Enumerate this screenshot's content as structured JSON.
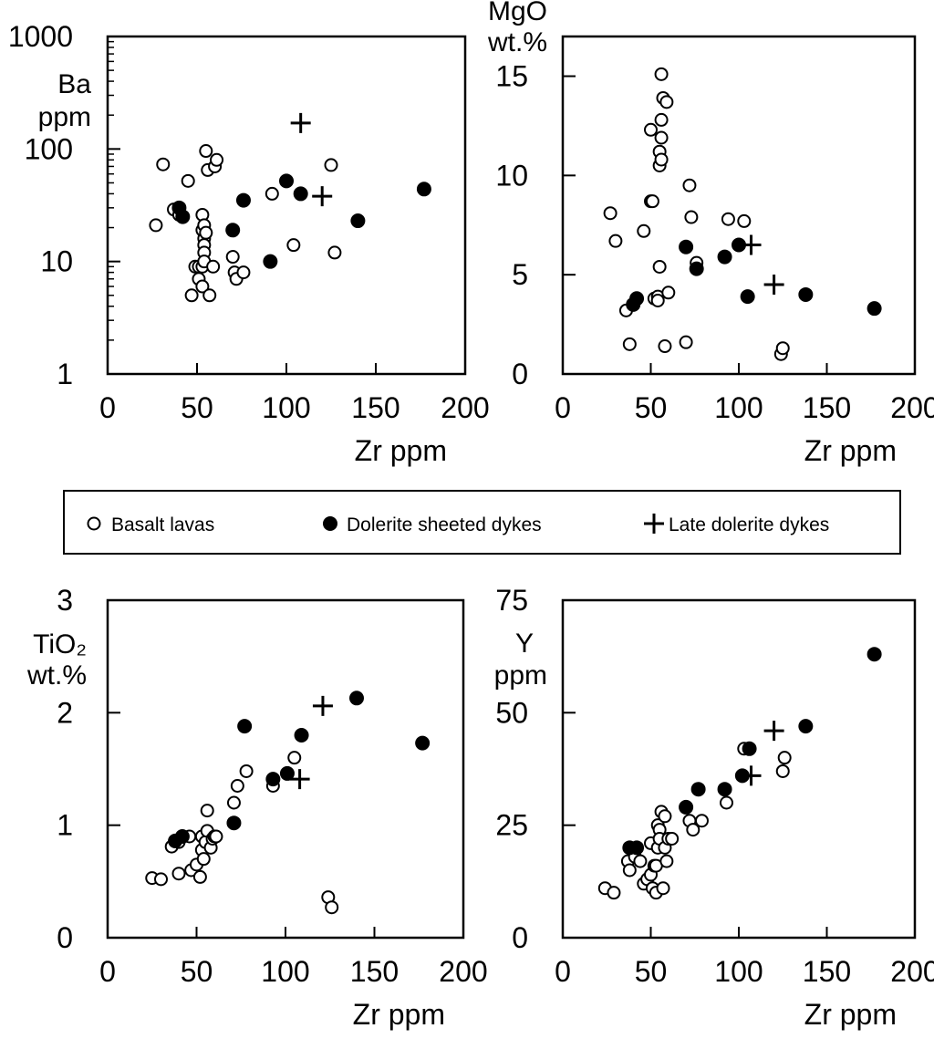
{
  "legend": {
    "items": [
      {
        "label": "Basalt lavas",
        "marker": "open-circle"
      },
      {
        "label": "Dolerite sheeted dykes",
        "marker": "filled-circle"
      },
      {
        "label": "Late dolerite dykes",
        "marker": "plus"
      }
    ]
  },
  "colors": {
    "ink": "#000000",
    "background": "#ffffff"
  },
  "chart_data": [
    {
      "id": "ba",
      "type": "scatter",
      "ylabel_lines": [
        "Ba",
        "ppm"
      ],
      "xlabel": "Zr ppm",
      "xlim": [
        0,
        200
      ],
      "xticks": [
        0,
        50,
        100,
        150,
        200
      ],
      "ylim": [
        1,
        1000
      ],
      "yscale": "log",
      "yticks": [
        1,
        10,
        100,
        1000
      ],
      "series": [
        {
          "name": "Basalt lavas",
          "marker": "open-circle",
          "points": [
            [
              27,
              21
            ],
            [
              31,
              73
            ],
            [
              37,
              29
            ],
            [
              40,
              26
            ],
            [
              45,
              52
            ],
            [
              47,
              5
            ],
            [
              49,
              9
            ],
            [
              51,
              9
            ],
            [
              51,
              7
            ],
            [
              53,
              6
            ],
            [
              53,
              9
            ],
            [
              53,
              19
            ],
            [
              53,
              26
            ],
            [
              54,
              21
            ],
            [
              54,
              16
            ],
            [
              54,
              14
            ],
            [
              54,
              12
            ],
            [
              54,
              10
            ],
            [
              55,
              18
            ],
            [
              55,
              96
            ],
            [
              56,
              65
            ],
            [
              57,
              5
            ],
            [
              59,
              9
            ],
            [
              60,
              70
            ],
            [
              61,
              80
            ],
            [
              70,
              11
            ],
            [
              71,
              8
            ],
            [
              72,
              7
            ],
            [
              76,
              8
            ],
            [
              92,
              40
            ],
            [
              104,
              14
            ],
            [
              125,
              72
            ],
            [
              127,
              12
            ]
          ]
        },
        {
          "name": "Dolerite sheeted dykes",
          "marker": "filled-circle",
          "points": [
            [
              40,
              30
            ],
            [
              42,
              25
            ],
            [
              70,
              19
            ],
            [
              76,
              35
            ],
            [
              91,
              10
            ],
            [
              100,
              52
            ],
            [
              108,
              40
            ],
            [
              140,
              23
            ],
            [
              177,
              44
            ]
          ]
        },
        {
          "name": "Late dolerite dykes",
          "marker": "plus",
          "points": [
            [
              108,
              170
            ],
            [
              120,
              38
            ]
          ]
        }
      ]
    },
    {
      "id": "mgo",
      "type": "scatter",
      "ylabel_lines": [
        "MgO",
        "wt.%"
      ],
      "xlabel": "Zr ppm",
      "xlim": [
        0,
        200
      ],
      "xticks": [
        0,
        50,
        100,
        150,
        200
      ],
      "ylim": [
        0,
        17
      ],
      "yticks": [
        0,
        5,
        10,
        15
      ],
      "series": [
        {
          "name": "Basalt lavas",
          "marker": "open-circle",
          "points": [
            [
              27,
              8.1
            ],
            [
              30,
              6.7
            ],
            [
              36,
              3.2
            ],
            [
              38,
              1.5
            ],
            [
              46,
              7.2
            ],
            [
              50,
              8.7
            ],
            [
              50,
              12.3
            ],
            [
              51,
              8.7
            ],
            [
              52,
              3.8
            ],
            [
              54,
              3.9
            ],
            [
              54,
              3.7
            ],
            [
              55,
              5.4
            ],
            [
              55,
              11.2
            ],
            [
              55,
              10.5
            ],
            [
              56,
              10.8
            ],
            [
              56,
              11.9
            ],
            [
              56,
              12.8
            ],
            [
              56,
              15.1
            ],
            [
              57,
              13.9
            ],
            [
              58,
              1.4
            ],
            [
              59,
              13.7
            ],
            [
              60,
              4.1
            ],
            [
              70,
              1.6
            ],
            [
              72,
              9.5
            ],
            [
              73,
              7.9
            ],
            [
              76,
              5.6
            ],
            [
              94,
              7.8
            ],
            [
              103,
              7.7
            ],
            [
              124,
              1.0
            ],
            [
              125,
              1.3
            ]
          ]
        },
        {
          "name": "Dolerite sheeted dykes",
          "marker": "filled-circle",
          "points": [
            [
              40,
              3.5
            ],
            [
              42,
              3.8
            ],
            [
              70,
              6.4
            ],
            [
              76,
              5.3
            ],
            [
              92,
              5.9
            ],
            [
              100,
              6.5
            ],
            [
              105,
              3.9
            ],
            [
              138,
              4.0
            ],
            [
              177,
              3.3
            ]
          ]
        },
        {
          "name": "Late dolerite dykes",
          "marker": "plus",
          "points": [
            [
              107,
              6.5
            ],
            [
              120,
              4.5
            ]
          ]
        }
      ]
    },
    {
      "id": "tio2",
      "type": "scatter",
      "ylabel_lines": [
        "TiO₂",
        "wt.%"
      ],
      "xlabel": "Zr ppm",
      "xlim": [
        0,
        200
      ],
      "xticks": [
        0,
        50,
        100,
        150,
        200
      ],
      "ylim": [
        0,
        3
      ],
      "yticks": [
        0,
        1,
        2,
        3
      ],
      "series": [
        {
          "name": "Basalt lavas",
          "marker": "open-circle",
          "points": [
            [
              25,
              0.53
            ],
            [
              30,
              0.52
            ],
            [
              36,
              0.81
            ],
            [
              40,
              0.57
            ],
            [
              40,
              0.85
            ],
            [
              46,
              0.9
            ],
            [
              47,
              0.6
            ],
            [
              50,
              0.65
            ],
            [
              52,
              0.54
            ],
            [
              53,
              0.78
            ],
            [
              53,
              0.9
            ],
            [
              54,
              0.7
            ],
            [
              55,
              0.85
            ],
            [
              56,
              0.95
            ],
            [
              56,
              1.13
            ],
            [
              58,
              0.8
            ],
            [
              59,
              0.88
            ],
            [
              60,
              0.9
            ],
            [
              61,
              0.9
            ],
            [
              71,
              1.2
            ],
            [
              73,
              1.35
            ],
            [
              78,
              1.48
            ],
            [
              93,
              1.35
            ],
            [
              105,
              1.6
            ],
            [
              124,
              0.36
            ],
            [
              126,
              0.27
            ]
          ]
        },
        {
          "name": "Dolerite sheeted dykes",
          "marker": "filled-circle",
          "points": [
            [
              38,
              0.86
            ],
            [
              42,
              0.9
            ],
            [
              71,
              1.02
            ],
            [
              77,
              1.88
            ],
            [
              93,
              1.41
            ],
            [
              101,
              1.46
            ],
            [
              109,
              1.8
            ],
            [
              140,
              2.13
            ],
            [
              177,
              1.73
            ]
          ]
        },
        {
          "name": "Late dolerite dykes",
          "marker": "plus",
          "points": [
            [
              108,
              1.41
            ],
            [
              121,
              2.06
            ]
          ]
        }
      ]
    },
    {
      "id": "y",
      "type": "scatter",
      "ylabel_lines": [
        "Y",
        "ppm"
      ],
      "xlabel": "Zr ppm",
      "xlim": [
        0,
        200
      ],
      "xticks": [
        0,
        50,
        100,
        150,
        200
      ],
      "ylim": [
        0,
        75
      ],
      "yticks": [
        0,
        25,
        50,
        75
      ],
      "series": [
        {
          "name": "Basalt lavas",
          "marker": "open-circle",
          "points": [
            [
              24,
              11
            ],
            [
              29,
              10
            ],
            [
              37,
              17
            ],
            [
              38,
              15
            ],
            [
              41,
              18
            ],
            [
              44,
              17
            ],
            [
              46,
              12
            ],
            [
              48,
              13
            ],
            [
              50,
              14
            ],
            [
              50,
              21
            ],
            [
              51,
              11
            ],
            [
              52,
              16
            ],
            [
              53,
              16
            ],
            [
              53,
              10
            ],
            [
              54,
              20
            ],
            [
              54,
              25
            ],
            [
              55,
              24
            ],
            [
              55,
              22
            ],
            [
              56,
              28
            ],
            [
              57,
              11
            ],
            [
              58,
              20
            ],
            [
              58,
              27
            ],
            [
              59,
              17
            ],
            [
              60,
              22
            ],
            [
              62,
              22
            ],
            [
              72,
              26
            ],
            [
              74,
              24
            ],
            [
              79,
              26
            ],
            [
              93,
              30
            ],
            [
              103,
              42
            ],
            [
              125,
              37
            ],
            [
              126,
              40
            ]
          ]
        },
        {
          "name": "Dolerite sheeted dykes",
          "marker": "filled-circle",
          "points": [
            [
              38,
              20
            ],
            [
              42,
              20
            ],
            [
              70,
              29
            ],
            [
              77,
              33
            ],
            [
              92,
              33
            ],
            [
              102,
              36
            ],
            [
              106,
              42
            ],
            [
              138,
              47
            ],
            [
              177,
              63
            ]
          ]
        },
        {
          "name": "Late dolerite dykes",
          "marker": "plus",
          "points": [
            [
              107,
              36
            ],
            [
              120,
              46
            ]
          ]
        }
      ]
    }
  ]
}
